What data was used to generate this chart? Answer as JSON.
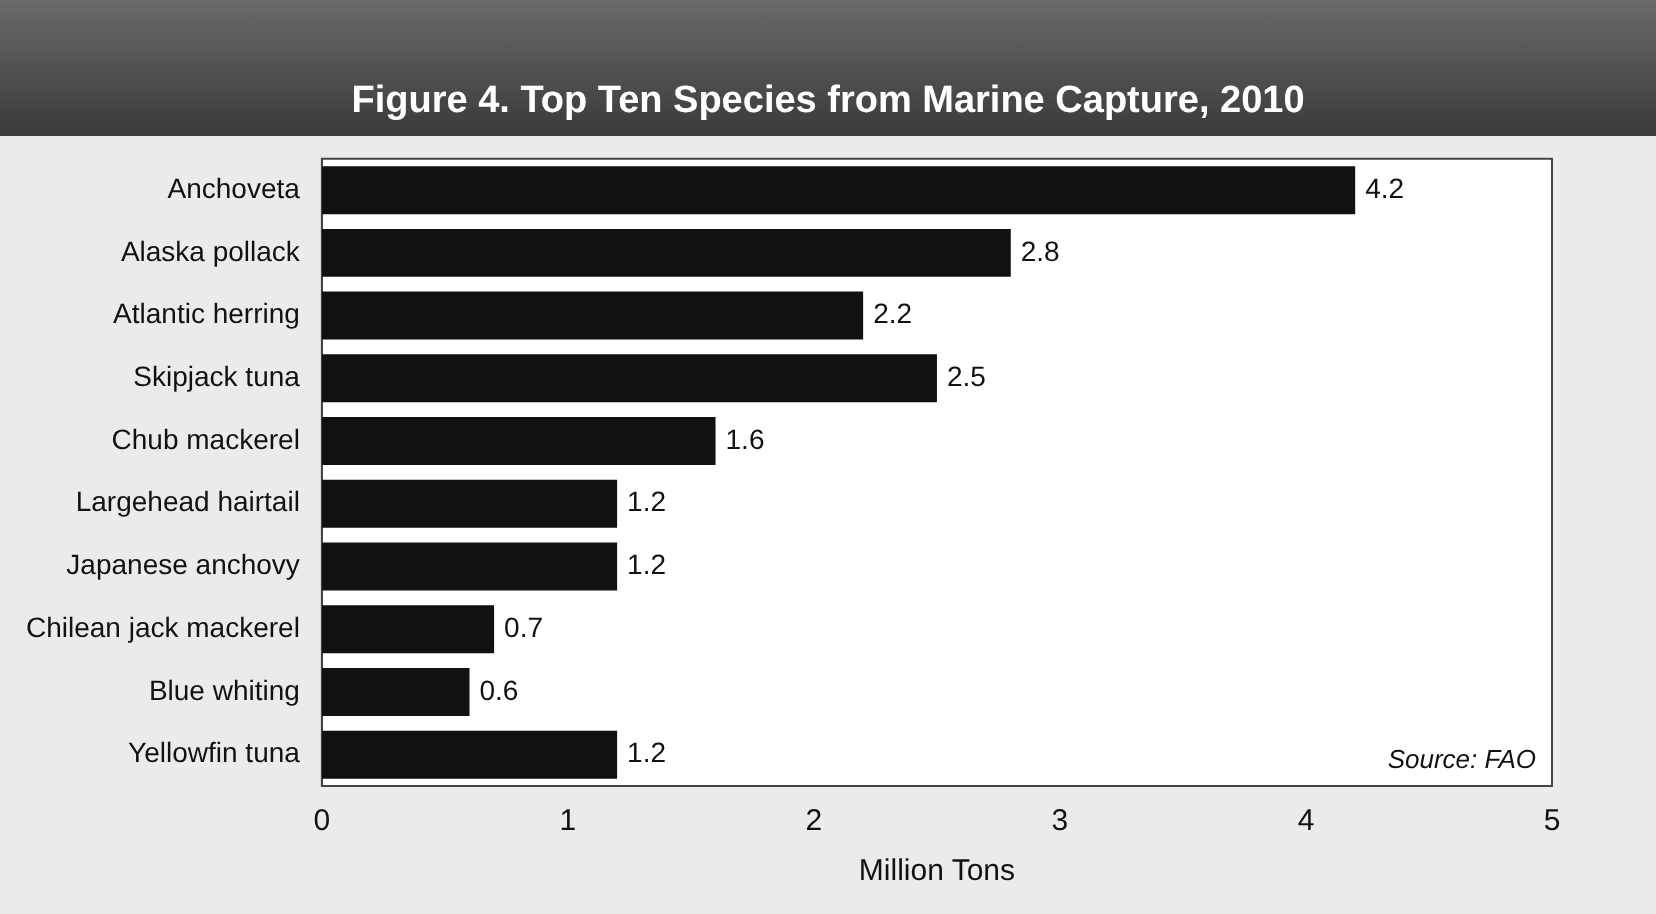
{
  "chart_data": {
    "type": "bar",
    "orientation": "horizontal",
    "title": "Figure 4. Top Ten Species from Marine Capture, 2010",
    "categories": [
      "Anchoveta",
      "Alaska pollack",
      "Atlantic herring",
      "Skipjack tuna",
      "Chub mackerel",
      "Largehead hairtail",
      "Japanese anchovy",
      "Chilean jack mackerel",
      "Blue whiting",
      "Yellowfin tuna"
    ],
    "values": [
      4.2,
      2.8,
      2.2,
      2.5,
      1.6,
      1.2,
      1.2,
      0.7,
      0.6,
      1.2
    ],
    "color": "#111111",
    "xlim": [
      0,
      5
    ],
    "xticks": [
      0,
      1,
      2,
      3,
      4,
      5
    ],
    "xlabel": "Million Tons",
    "grid": false,
    "legend": false,
    "data_labels": true,
    "annotations": [
      "Source: FAO"
    ]
  }
}
